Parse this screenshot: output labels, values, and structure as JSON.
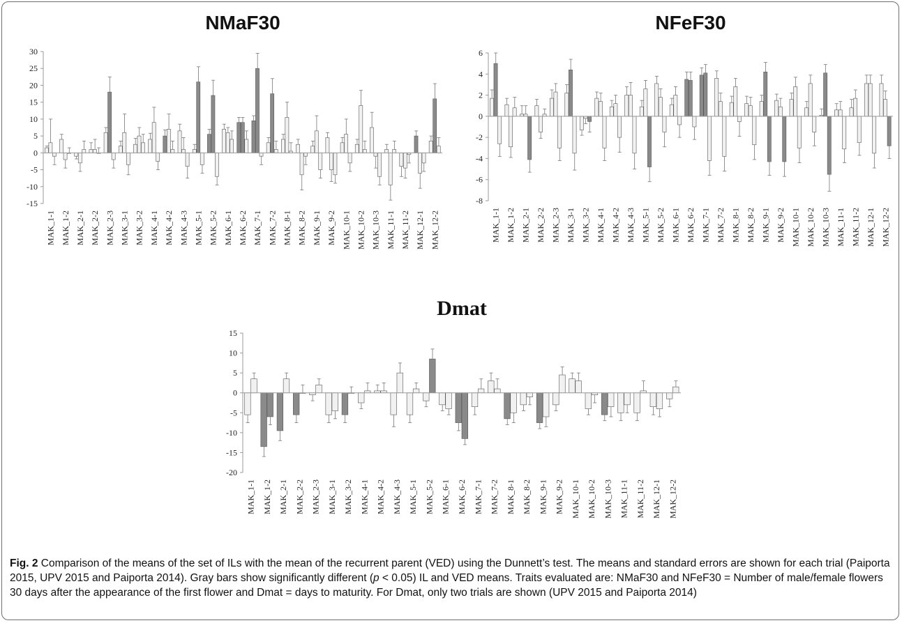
{
  "caption": {
    "label": "Fig. 2",
    "text": " Comparison of the means of the set of ILs with the mean of the recurrent parent (VED) using the Dunnett’s test. The means and standard errors are shown for each trial (Paiporta 2015, UPV 2015 and Paiporta 2014). Gray bars show significantly different (",
    "p_symbol": "p",
    "text2": " < 0.05) IL and VED means. Traits evaluated are: NMaF30 and NFeF30 = Number of male/female flowers 30 days after the appearance of the first flower and Dmat = days to maturity. For Dmat, only two trials are shown (UPV 2015 and Paiporta 2014)"
  },
  "chart_data": [
    {
      "type": "bar",
      "title": "NMaF30",
      "ylim": [
        -15,
        30
      ],
      "yticks": [
        30,
        25,
        20,
        15,
        10,
        5,
        0,
        -5,
        -10,
        -15
      ],
      "grid": false,
      "categories": [
        "MAK_1-1",
        "MAK_1-2",
        "MAK_2-1",
        "MAK_2-2",
        "MAK_2-3",
        "MAK_3-1",
        "MAK_3-2",
        "MAK_4-1",
        "MAK_4-2",
        "MAK_4-3",
        "MAK_5-1",
        "MAK_5-2",
        "MAK_6-1",
        "MAK_6-2",
        "MAK_7-1",
        "MAK_7-2",
        "MAK_8-1",
        "MAK_8-2",
        "MAK_9-1",
        "MAK_9-2",
        "MAK_10-1",
        "MAK_10-2",
        "MAK_10-3",
        "MAK_11-1",
        "MAK_11-2",
        "MAK_12-1",
        "MAK_12-2"
      ],
      "series": [
        {
          "values": [
            1.5,
            4,
            -1,
            1,
            6,
            2,
            2.5,
            4,
            5,
            6.5,
            1,
            5.5,
            7,
            9,
            9.5,
            3,
            4,
            2.5,
            2,
            4.5,
            3,
            2.5,
            7.5,
            1,
            -4,
            5,
            3.5
          ]
        },
        {
          "values": [
            3,
            -2,
            -3,
            1,
            18,
            6,
            5,
            9,
            7,
            1,
            21,
            17,
            6,
            9,
            25,
            17.5,
            10.5,
            -6.5,
            6.5,
            -5,
            5.5,
            14,
            -1,
            -9.5,
            -4.5,
            -6,
            16
          ]
        },
        {
          "values": [
            -1,
            0,
            1,
            0,
            -2,
            -3.5,
            3,
            -2.5,
            1,
            -4,
            -3.5,
            -7,
            4,
            4,
            -1,
            1,
            0.5,
            -1,
            -5,
            -6.5,
            -3,
            1,
            -7,
            1,
            -0.5,
            -3,
            2
          ]
        }
      ],
      "errors": [
        [
          0.5,
          1.5,
          0.8,
          2,
          1.5,
          1.5,
          1.8,
          1.8,
          1.8,
          2,
          1.5,
          1.5,
          1.5,
          1.5,
          1.5,
          1.5,
          1.5,
          1.5,
          1.5,
          1.5,
          1.5,
          1.5,
          4.5,
          1.5,
          3,
          1.5,
          1.5
        ],
        [
          7,
          2.5,
          2.5,
          3,
          4.5,
          5.5,
          2.5,
          4.5,
          4.5,
          3.5,
          4.5,
          4.5,
          1.5,
          1.5,
          4.5,
          4.5,
          4.5,
          4.5,
          4.5,
          3.5,
          4.5,
          4.5,
          3.5,
          4.5,
          3,
          4.5,
          4.5
        ],
        [
          2.5,
          1.5,
          2.5,
          1.5,
          2.5,
          3,
          2.5,
          2.5,
          2.5,
          3.5,
          2.5,
          2.5,
          2.5,
          2.5,
          2.5,
          2.5,
          2.5,
          2.5,
          2.5,
          2.5,
          2.5,
          2.5,
          2.5,
          2.5,
          2.5,
          2.5,
          2.5
        ]
      ],
      "significant": [
        [
          false,
          false,
          false,
          false,
          false,
          false,
          false,
          false,
          true,
          false,
          false,
          true,
          false,
          true,
          true,
          false,
          false,
          false,
          false,
          false,
          false,
          false,
          false,
          false,
          false,
          true,
          false
        ],
        [
          false,
          false,
          false,
          false,
          true,
          false,
          false,
          false,
          false,
          false,
          true,
          true,
          false,
          true,
          true,
          true,
          false,
          false,
          false,
          false,
          false,
          false,
          false,
          false,
          false,
          false,
          true
        ],
        [
          false,
          false,
          false,
          false,
          false,
          false,
          false,
          false,
          false,
          false,
          false,
          false,
          false,
          false,
          false,
          false,
          false,
          false,
          false,
          false,
          false,
          false,
          false,
          false,
          false,
          false,
          false
        ]
      ]
    },
    {
      "type": "bar",
      "title": "NFeF30",
      "ylim": [
        -8,
        6
      ],
      "yticks": [
        6,
        4,
        2,
        0,
        -2,
        -4,
        -6,
        -8
      ],
      "grid": false,
      "categories": [
        "MAK_1-1",
        "MAK_1-2",
        "MAK_2-1",
        "MAK_2-2",
        "MAK_2-3",
        "MAK_3-1",
        "MAK_3-2",
        "MAK_4-1",
        "MAK_4-2",
        "MAK_4-3",
        "MAK_5-1",
        "MAK_5-2",
        "MAK_6-1",
        "MAK_6-2",
        "MAK_7-1",
        "MAK_7-2",
        "MAK_8-1",
        "MAK_8-2",
        "MAK_9-1",
        "MAK_9-2",
        "MAK_10-1",
        "MAK_10-2",
        "MAK_10-3",
        "MAK_11-1",
        "MAK_11-2",
        "MAK_12-1",
        "MAK_12-2"
      ],
      "series": [
        {
          "values": [
            1.7,
            1.1,
            0.2,
            1,
            1.7,
            2.2,
            -1.3,
            1.7,
            0.9,
            2,
            0.9,
            3.1,
            1.1,
            3.5,
            3.9,
            3.6,
            1.3,
            1.2,
            1.4,
            1.5,
            1.6,
            0.8,
            0.1,
            0.6,
            0.8,
            3.1,
            3.1
          ]
        },
        {
          "values": [
            5,
            -2.9,
            0.2,
            -1.5,
            2.3,
            4.4,
            -0.2,
            1.4,
            1.2,
            2,
            2.6,
            1.8,
            2,
            3.4,
            4.1,
            1.4,
            2.8,
            1,
            4.2,
            0.9,
            2.8,
            3.1,
            4.1,
            0.6,
            1.7,
            3.1,
            1.6
          ]
        },
        {
          "values": [
            -2.6,
            0.8,
            -4.1,
            0.2,
            -3,
            -3.5,
            -0.5,
            -3,
            -2,
            -3.5,
            -4.8,
            -1.5,
            -0.8,
            -1,
            -4.2,
            -3.8,
            -0.5,
            -2.7,
            -4.3,
            -4.3,
            -3,
            -1.5,
            -5.5,
            -3.1,
            -2.5,
            -3.5,
            -2.8
          ]
        }
      ],
      "errors": [
        [
          0.8,
          0.6,
          0.8,
          0.6,
          0.8,
          0.8,
          0.5,
          0.6,
          0.6,
          0.8,
          0.6,
          0.7,
          0.6,
          0.7,
          0.7,
          0.7,
          0.6,
          0.7,
          0.6,
          0.6,
          0.6,
          0.6,
          0.6,
          0.6,
          0.8,
          0.8,
          0.8
        ],
        [
          1,
          1,
          0.8,
          0.6,
          0.8,
          1,
          0.5,
          0.8,
          0.8,
          1.2,
          0.8,
          0.8,
          0.8,
          0.8,
          0.8,
          0.8,
          0.8,
          0.8,
          0.9,
          0.8,
          0.9,
          0.8,
          0.8,
          0.8,
          0.8,
          0.8,
          0.8
        ],
        [
          1.2,
          1,
          1.2,
          0.5,
          1.2,
          1.6,
          1,
          1.2,
          1.4,
          1.5,
          1.4,
          1.4,
          1.2,
          1.2,
          1.4,
          1.4,
          1.4,
          1.4,
          1.3,
          1.4,
          1.4,
          1.3,
          1.6,
          1.3,
          1.2,
          1.4,
          1.2
        ]
      ],
      "significant": [
        [
          false,
          false,
          false,
          false,
          false,
          false,
          false,
          false,
          false,
          false,
          false,
          false,
          false,
          true,
          true,
          false,
          false,
          false,
          false,
          false,
          false,
          false,
          false,
          false,
          false,
          false,
          false
        ],
        [
          true,
          false,
          false,
          false,
          false,
          true,
          false,
          false,
          false,
          false,
          false,
          false,
          false,
          true,
          true,
          false,
          false,
          false,
          true,
          false,
          false,
          false,
          true,
          false,
          false,
          false,
          false
        ],
        [
          false,
          false,
          true,
          false,
          false,
          false,
          true,
          false,
          false,
          false,
          true,
          false,
          false,
          false,
          false,
          false,
          false,
          false,
          true,
          true,
          false,
          false,
          true,
          false,
          false,
          false,
          true
        ]
      ]
    },
    {
      "type": "bar",
      "title": "Dmat",
      "ylim": [
        -20,
        15
      ],
      "yticks": [
        15,
        10,
        5,
        0,
        -5,
        -10,
        -15,
        -20
      ],
      "grid": false,
      "categories": [
        "MAK_1-1",
        "MAK_1-2",
        "MAK_2-1",
        "MAK_2-2",
        "MAK_2-3",
        "MAK_3-1",
        "MAK_3-2",
        "MAK_4-1",
        "MAK_4-2",
        "MAK_4-3",
        "MAK_5-1",
        "MAK_5-2",
        "MAK_6-1",
        "MAK_6-2",
        "MAK_7-1",
        "MAK_7-2",
        "MAK_8-1",
        "MAK_8-2",
        "MAK_9-1",
        "MAK_9-2",
        "MAK_10-1",
        "MAK_10-2",
        "MAK_10-3",
        "MAK_11-1",
        "MAK_11-2",
        "MAK_12-1",
        "MAK_12-2"
      ],
      "series": [
        {
          "values": [
            -5.5,
            -13.5,
            -9.5,
            -5.5,
            -0.5,
            -5.5,
            -5.5,
            -2.5,
            0.5,
            -5.5,
            -5.5,
            -2,
            -3,
            -7.5,
            -3.5,
            3,
            -6.5,
            -3,
            -7.5,
            -3,
            3.5,
            -4,
            -5.5,
            -5,
            -5,
            -3.5,
            -1.5
          ]
        },
        {
          "values": [
            3.5,
            -6,
            3.5,
            0,
            2,
            -4.5,
            0,
            0.5,
            0.5,
            5,
            1,
            8.5,
            -4,
            -11.5,
            1,
            1,
            -5,
            -1,
            -6,
            4.5,
            3,
            -0.5,
            -3.5,
            -3,
            0.5,
            -4,
            1.5
          ]
        }
      ],
      "errors": [
        [
          2,
          2.5,
          2.5,
          2,
          1.5,
          2,
          2,
          1.5,
          1.5,
          3,
          2,
          1.5,
          1.5,
          2,
          2,
          2,
          1.5,
          1.5,
          1.5,
          1.5,
          1.5,
          1.5,
          1.5,
          2,
          2,
          2,
          2
        ],
        [
          1.5,
          2,
          1.5,
          2,
          1.5,
          2,
          1.5,
          2,
          2,
          2.5,
          1.5,
          2.5,
          1.5,
          1.5,
          2.5,
          2.5,
          2.5,
          2,
          2.5,
          2,
          2,
          2,
          2.5,
          2,
          2.5,
          2,
          1.5
        ]
      ],
      "significant": [
        [
          false,
          true,
          true,
          true,
          false,
          false,
          true,
          false,
          false,
          false,
          false,
          false,
          false,
          true,
          false,
          false,
          true,
          false,
          true,
          false,
          false,
          false,
          true,
          false,
          false,
          false,
          false
        ],
        [
          false,
          true,
          false,
          false,
          false,
          false,
          false,
          false,
          false,
          false,
          false,
          true,
          false,
          true,
          false,
          false,
          false,
          false,
          false,
          false,
          false,
          false,
          false,
          false,
          false,
          false,
          false
        ]
      ]
    }
  ],
  "colors": {
    "light_bar": "#f1f1f1",
    "dark_bar": "#8a8a8a",
    "bar_edge": "#555555",
    "axis": "#999999",
    "error_bar": "#777777"
  }
}
